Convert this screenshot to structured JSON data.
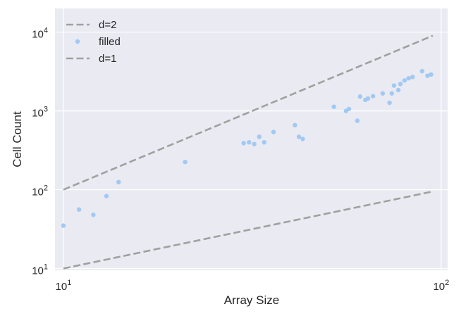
{
  "chart_data": {
    "type": "scatter",
    "xscale": "log",
    "yscale": "log",
    "xlim": [
      9.5,
      104
    ],
    "ylim": [
      9.5,
      20000
    ],
    "xlabel": "Array Size",
    "ylabel": "Cell Count",
    "grid": true,
    "legend_position": "top-left",
    "x_ticks": [
      {
        "value": 10,
        "base": "10",
        "exp": "1"
      },
      {
        "value": 100,
        "base": "10",
        "exp": "2"
      }
    ],
    "y_ticks": [
      {
        "value": 10,
        "base": "10",
        "exp": "1"
      },
      {
        "value": 100,
        "base": "10",
        "exp": "2"
      },
      {
        "value": 1000,
        "base": "10",
        "exp": "3"
      },
      {
        "value": 10000,
        "base": "10",
        "exp": "4"
      }
    ],
    "series": [
      {
        "name": "d=2",
        "kind": "line",
        "style": "dashed",
        "color": "#a0a0a0",
        "x": [
          10,
          95
        ],
        "y": [
          100,
          9025
        ]
      },
      {
        "name": "filled",
        "kind": "scatter",
        "color": "#a1c9f4",
        "x": [
          10,
          11,
          12,
          13,
          14,
          21,
          30,
          31,
          32,
          33,
          34,
          36,
          41,
          42,
          43,
          52,
          56,
          57,
          60,
          61,
          63,
          64,
          66,
          70,
          73,
          74,
          75,
          77,
          78,
          80,
          82,
          84,
          89,
          92,
          94
        ],
        "y": [
          35,
          56,
          48,
          83,
          125,
          225,
          390,
          400,
          380,
          470,
          400,
          540,
          660,
          470,
          440,
          1130,
          1000,
          1060,
          750,
          1520,
          1380,
          1440,
          1540,
          1670,
          1270,
          1670,
          2100,
          1840,
          2200,
          2440,
          2600,
          2700,
          3200,
          2800,
          2900
        ]
      },
      {
        "name": "d=1",
        "kind": "line",
        "style": "dashed",
        "color": "#a0a0a0",
        "x": [
          10,
          95
        ],
        "y": [
          10,
          95
        ]
      }
    ]
  },
  "colors": {
    "plot_background": "#eaeaf2",
    "grid": "#ffffff",
    "text": "#262626"
  }
}
